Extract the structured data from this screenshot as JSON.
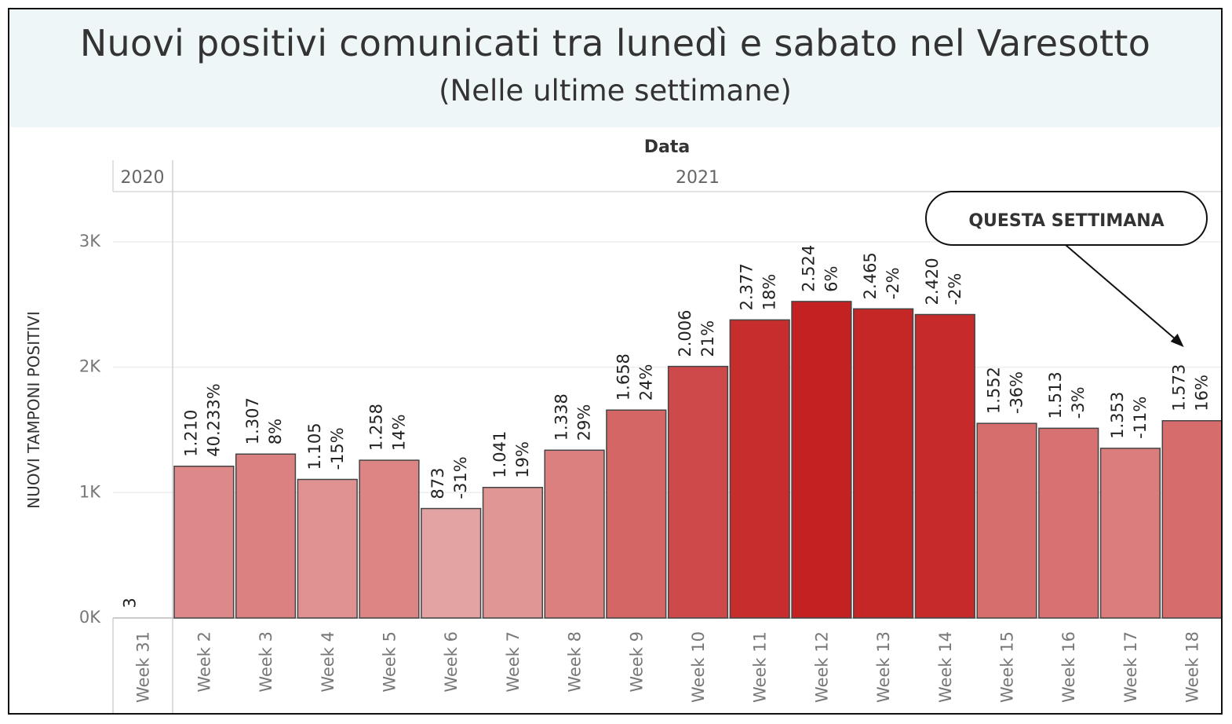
{
  "chart_title": "Nuovi positivi comunicati tra lunedì e sabato nel Varesotto",
  "chart_subtitle": "(Nelle ultime settimane)",
  "chart_data": {
    "type": "bar",
    "title": "Nuovi positivi comunicati tra lunedì e sabato nel Varesotto",
    "subtitle": "(Nelle ultime settimane)",
    "xlabel": "Data",
    "ylabel": "NUOVI TAMPONI POSITIVI",
    "year_groups": [
      {
        "label": "2020",
        "categories": [
          "Week 31"
        ]
      },
      {
        "label": "2021",
        "categories": [
          "Week 2",
          "Week 3",
          "Week 4",
          "Week 5",
          "Week 6",
          "Week 7",
          "Week 8",
          "Week 9",
          "Week 10",
          "Week 11",
          "Week 12",
          "Week 13",
          "Week 14",
          "Week 15",
          "Week 16",
          "Week 17",
          "Week 18"
        ]
      }
    ],
    "categories": [
      "Week 31",
      "Week 2",
      "Week 3",
      "Week 4",
      "Week 5",
      "Week 6",
      "Week 7",
      "Week 8",
      "Week 9",
      "Week 10",
      "Week 11",
      "Week 12",
      "Week 13",
      "Week 14",
      "Week 15",
      "Week 16",
      "Week 17",
      "Week 18"
    ],
    "values": [
      3,
      1210,
      1307,
      1105,
      1258,
      873,
      1041,
      1338,
      1658,
      2006,
      2377,
      2524,
      2465,
      2420,
      1552,
      1513,
      1353,
      1573
    ],
    "value_labels": [
      "3",
      "1.210",
      "1.307",
      "1.105",
      "1.258",
      "873",
      "1.041",
      "1.338",
      "1.658",
      "2.006",
      "2.377",
      "2.524",
      "2.465",
      "2.420",
      "1.552",
      "1.513",
      "1.353",
      "1.573"
    ],
    "change_labels": [
      "",
      "40.233%",
      "8%",
      "-15%",
      "14%",
      "-31%",
      "19%",
      "29%",
      "24%",
      "21%",
      "18%",
      "6%",
      "-2%",
      "-2%",
      "-36%",
      "-3%",
      "-11%",
      "16%"
    ],
    "y_ticks": [
      {
        "value": 0,
        "label": "0K"
      },
      {
        "value": 1000,
        "label": "1K"
      },
      {
        "value": 2000,
        "label": "2K"
      },
      {
        "value": 3000,
        "label": "3K"
      }
    ],
    "ylim": [
      0,
      3400
    ],
    "grid": true,
    "color_scale": {
      "low": "#e4a3a3",
      "high": "#c42222"
    },
    "annotation": {
      "text": "QUESTA SETTIMANA",
      "target": "Week 18"
    }
  }
}
